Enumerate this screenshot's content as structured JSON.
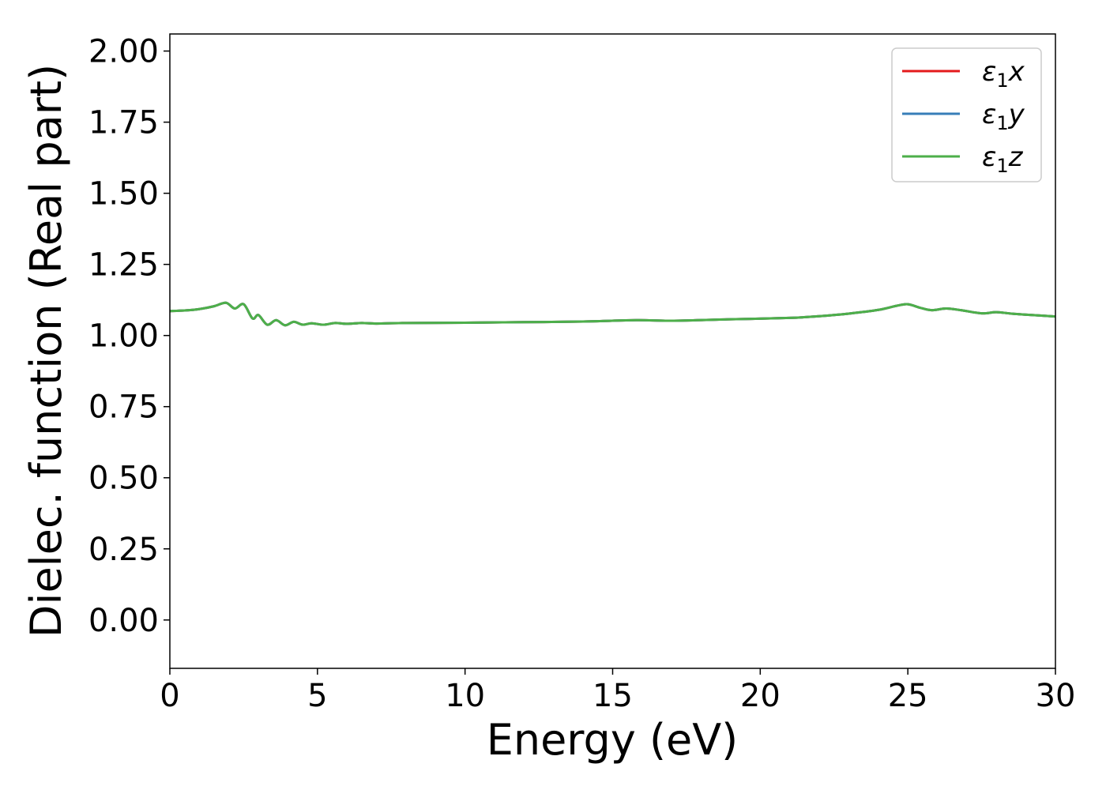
{
  "chart_data": {
    "type": "line",
    "xlabel": "Energy (eV)",
    "ylabel": "Dielec. function (Real part)",
    "xlim": [
      0,
      30
    ],
    "ylim": [
      -0.17,
      2.06
    ],
    "x_ticks": [
      0,
      5,
      10,
      15,
      20,
      25,
      30
    ],
    "y_ticks": [
      0.0,
      0.25,
      0.5,
      0.75,
      1.0,
      1.25,
      1.5,
      1.75,
      2.0
    ],
    "x_tick_labels": [
      "0",
      "5",
      "10",
      "15",
      "20",
      "25",
      "30"
    ],
    "y_tick_labels": [
      "0.00",
      "0.25",
      "0.50",
      "0.75",
      "1.00",
      "1.25",
      "1.50",
      "1.75",
      "2.00"
    ],
    "grid": false,
    "legend_position": "top-right",
    "series": [
      {
        "name": "ε1x",
        "legend_base": "ε",
        "legend_sub": "1",
        "legend_var": "x",
        "color": "#e41a1c",
        "x": [
          0,
          0.5,
          1.0,
          1.5,
          1.9,
          2.2,
          2.5,
          2.8,
          3.0,
          3.3,
          3.6,
          3.9,
          4.2,
          4.5,
          4.8,
          5.2,
          5.6,
          6.0,
          6.5,
          7.0,
          8,
          10,
          12,
          14,
          15.8,
          17,
          19,
          21,
          22,
          23,
          24,
          24.6,
          25.0,
          25.4,
          25.8,
          26.3,
          26.8,
          27.5,
          28.0,
          28.5,
          29.2,
          30
        ],
        "y": [
          1.086,
          1.088,
          1.093,
          1.103,
          1.115,
          1.095,
          1.11,
          1.06,
          1.072,
          1.038,
          1.054,
          1.036,
          1.048,
          1.038,
          1.043,
          1.038,
          1.044,
          1.041,
          1.044,
          1.042,
          1.044,
          1.045,
          1.047,
          1.049,
          1.054,
          1.052,
          1.057,
          1.062,
          1.068,
          1.077,
          1.09,
          1.104,
          1.11,
          1.098,
          1.089,
          1.095,
          1.089,
          1.078,
          1.082,
          1.077,
          1.072,
          1.067
        ]
      },
      {
        "name": "ε1y",
        "legend_base": "ε",
        "legend_sub": "1",
        "legend_var": "y",
        "color": "#377eb8",
        "x": [
          0,
          0.5,
          1.0,
          1.5,
          1.9,
          2.2,
          2.5,
          2.8,
          3.0,
          3.3,
          3.6,
          3.9,
          4.2,
          4.5,
          4.8,
          5.2,
          5.6,
          6.0,
          6.5,
          7.0,
          8,
          10,
          12,
          14,
          15.8,
          17,
          19,
          21,
          22,
          23,
          24,
          24.6,
          25.0,
          25.4,
          25.8,
          26.3,
          26.8,
          27.5,
          28.0,
          28.5,
          29.2,
          30
        ],
        "y": [
          1.086,
          1.088,
          1.093,
          1.103,
          1.115,
          1.095,
          1.11,
          1.06,
          1.072,
          1.038,
          1.054,
          1.036,
          1.048,
          1.038,
          1.043,
          1.038,
          1.044,
          1.041,
          1.044,
          1.042,
          1.044,
          1.045,
          1.047,
          1.049,
          1.054,
          1.052,
          1.057,
          1.062,
          1.068,
          1.077,
          1.09,
          1.104,
          1.11,
          1.098,
          1.089,
          1.095,
          1.089,
          1.078,
          1.082,
          1.077,
          1.072,
          1.067
        ]
      },
      {
        "name": "ε1z",
        "legend_base": "ε",
        "legend_sub": "1",
        "legend_var": "z",
        "color": "#4daf4a",
        "x": [
          0,
          0.5,
          1.0,
          1.5,
          1.9,
          2.2,
          2.5,
          2.8,
          3.0,
          3.3,
          3.6,
          3.9,
          4.2,
          4.5,
          4.8,
          5.2,
          5.6,
          6.0,
          6.5,
          7.0,
          8,
          10,
          12,
          14,
          15.8,
          17,
          19,
          21,
          22,
          23,
          24,
          24.6,
          25.0,
          25.4,
          25.8,
          26.3,
          26.8,
          27.5,
          28.0,
          28.5,
          29.2,
          30
        ],
        "y": [
          1.086,
          1.088,
          1.093,
          1.103,
          1.115,
          1.095,
          1.11,
          1.06,
          1.072,
          1.038,
          1.054,
          1.036,
          1.048,
          1.038,
          1.043,
          1.038,
          1.044,
          1.041,
          1.044,
          1.042,
          1.044,
          1.045,
          1.047,
          1.049,
          1.054,
          1.052,
          1.057,
          1.062,
          1.068,
          1.077,
          1.09,
          1.104,
          1.11,
          1.098,
          1.089,
          1.095,
          1.089,
          1.078,
          1.082,
          1.077,
          1.072,
          1.067
        ]
      }
    ]
  }
}
